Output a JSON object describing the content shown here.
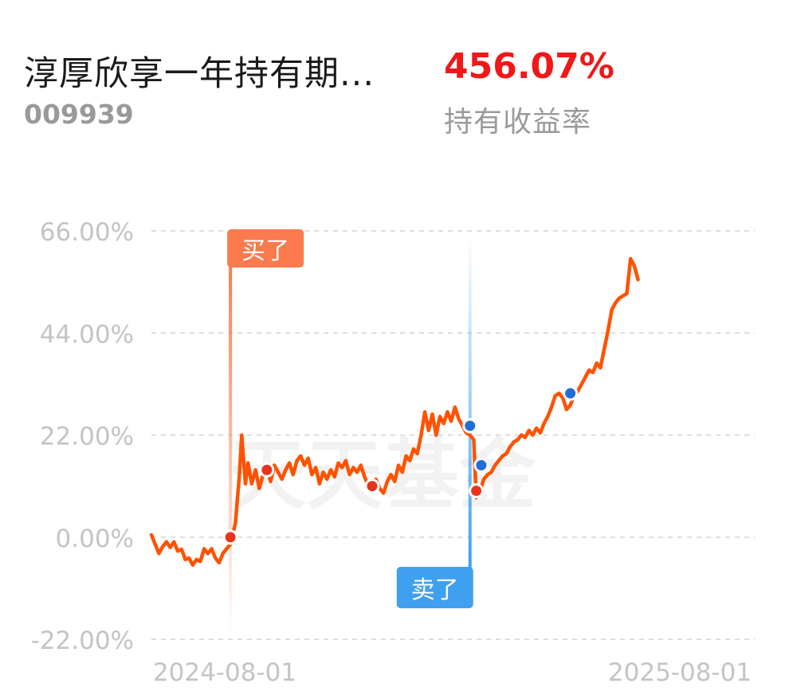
{
  "header": {
    "fund_name": "淳厚欣享一年持有期...",
    "fund_code": "009939",
    "return_value": "456.07%",
    "return_label": "持有收益率"
  },
  "watermark": "天天基金",
  "colors": {
    "line": "#ff5200",
    "buy": "#fb7a4e",
    "sell": "#3fa0ef",
    "grid": "#dddddd",
    "tick": "#c4c4c4",
    "return_value": "#f01818",
    "buy_dot": "#e8341c",
    "sell_dot": "#1f6fd6"
  },
  "chart_data": {
    "type": "line",
    "x_ticks": [
      "2024-08-01",
      "2025-08-01"
    ],
    "y_ticks": [
      "66.00%",
      "44.00%",
      "22.00%",
      "0.00%",
      "-22.00%"
    ],
    "ylim": [
      -22,
      66
    ],
    "grid": true,
    "x_domain": [
      "2024-06-01",
      "2025-09-25"
    ],
    "series": [
      {
        "values": [
          [
            "2024-06-01",
            0.5
          ],
          [
            "2024-06-04",
            -1.5
          ],
          [
            "2024-06-07",
            -3.5
          ],
          [
            "2024-06-10",
            -2.0
          ],
          [
            "2024-06-13",
            -1.0
          ],
          [
            "2024-06-16",
            -2.2
          ],
          [
            "2024-06-19",
            -1.0
          ],
          [
            "2024-06-22",
            -3.0
          ],
          [
            "2024-06-25",
            -2.6
          ],
          [
            "2024-06-28",
            -4.8
          ],
          [
            "2024-07-01",
            -4.5
          ],
          [
            "2024-07-04",
            -6.0
          ],
          [
            "2024-07-07",
            -4.8
          ],
          [
            "2024-07-10",
            -5.2
          ],
          [
            "2024-07-13",
            -2.5
          ],
          [
            "2024-07-16",
            -3.5
          ],
          [
            "2024-07-19",
            -2.5
          ],
          [
            "2024-07-22",
            -4.5
          ],
          [
            "2024-07-25",
            -5.5
          ],
          [
            "2024-07-28",
            -3.5
          ],
          [
            "2024-07-31",
            -2.5
          ],
          [
            "2024-08-03",
            -1.5
          ],
          [
            "2024-08-07",
            3.0
          ],
          [
            "2024-08-10",
            13.0
          ],
          [
            "2024-08-12",
            22.0
          ],
          [
            "2024-08-15",
            11.5
          ],
          [
            "2024-08-17",
            16.0
          ],
          [
            "2024-08-20",
            11.5
          ],
          [
            "2024-08-23",
            14.5
          ],
          [
            "2024-08-26",
            10.5
          ],
          [
            "2024-08-29",
            13.5
          ],
          [
            "2024-09-01",
            15.0
          ],
          [
            "2024-09-04",
            12.0
          ],
          [
            "2024-09-07",
            15.5
          ],
          [
            "2024-09-10",
            14.0
          ],
          [
            "2024-09-13",
            12.5
          ],
          [
            "2024-09-16",
            14.5
          ],
          [
            "2024-09-19",
            16.0
          ],
          [
            "2024-09-22",
            13.5
          ],
          [
            "2024-09-25",
            16.5
          ],
          [
            "2024-09-28",
            17.5
          ],
          [
            "2024-10-01",
            15.5
          ],
          [
            "2024-10-04",
            17.0
          ],
          [
            "2024-10-07",
            13.5
          ],
          [
            "2024-10-10",
            15.0
          ],
          [
            "2024-10-13",
            11.5
          ],
          [
            "2024-10-16",
            14.0
          ],
          [
            "2024-10-19",
            12.5
          ],
          [
            "2024-10-22",
            14.5
          ],
          [
            "2024-10-25",
            13.0
          ],
          [
            "2024-10-28",
            16.0
          ],
          [
            "2024-10-31",
            15.0
          ],
          [
            "2024-11-03",
            16.5
          ],
          [
            "2024-11-06",
            13.5
          ],
          [
            "2024-11-09",
            15.0
          ],
          [
            "2024-11-12",
            14.0
          ],
          [
            "2024-11-15",
            15.5
          ],
          [
            "2024-11-18",
            13.0
          ],
          [
            "2024-11-21",
            11.0
          ],
          [
            "2024-11-24",
            10.0
          ],
          [
            "2024-11-27",
            12.5
          ],
          [
            "2024-11-30",
            10.5
          ],
          [
            "2024-12-03",
            9.5
          ],
          [
            "2024-12-06",
            12.0
          ],
          [
            "2024-12-09",
            13.5
          ],
          [
            "2024-12-12",
            12.0
          ],
          [
            "2024-12-15",
            15.5
          ],
          [
            "2024-12-18",
            14.0
          ],
          [
            "2024-12-21",
            17.5
          ],
          [
            "2024-12-24",
            16.5
          ],
          [
            "2024-12-27",
            19.0
          ],
          [
            "2024-12-30",
            18.0
          ],
          [
            "2025-01-02",
            22.0
          ],
          [
            "2025-01-05",
            27.0
          ],
          [
            "2025-01-08",
            23.0
          ],
          [
            "2025-01-11",
            26.5
          ],
          [
            "2025-01-14",
            22.0
          ],
          [
            "2025-01-17",
            26.0
          ],
          [
            "2025-01-20",
            24.5
          ],
          [
            "2025-01-23",
            27.0
          ],
          [
            "2025-01-26",
            25.0
          ],
          [
            "2025-01-29",
            28.0
          ],
          [
            "2025-02-01",
            25.5
          ],
          [
            "2025-02-04",
            24.0
          ],
          [
            "2025-02-07",
            22.5
          ],
          [
            "2025-02-10",
            22.0
          ],
          [
            "2025-02-13",
            21.0
          ],
          [
            "2025-02-15",
            8.5
          ],
          [
            "2025-02-18",
            10.0
          ],
          [
            "2025-02-21",
            12.5
          ],
          [
            "2025-02-24",
            13.5
          ],
          [
            "2025-02-27",
            14.0
          ],
          [
            "2025-03-02",
            15.5
          ],
          [
            "2025-03-05",
            16.5
          ],
          [
            "2025-03-08",
            17.5
          ],
          [
            "2025-03-11",
            18.0
          ],
          [
            "2025-03-14",
            19.5
          ],
          [
            "2025-03-17",
            20.5
          ],
          [
            "2025-03-20",
            21.0
          ],
          [
            "2025-03-23",
            22.0
          ],
          [
            "2025-03-26",
            21.5
          ],
          [
            "2025-03-29",
            23.0
          ],
          [
            "2025-04-01",
            22.0
          ],
          [
            "2025-04-04",
            23.5
          ],
          [
            "2025-04-07",
            22.5
          ],
          [
            "2025-04-10",
            24.5
          ],
          [
            "2025-04-13",
            26.0
          ],
          [
            "2025-04-16",
            28.0
          ],
          [
            "2025-04-19",
            30.5
          ],
          [
            "2025-04-22",
            31.0
          ],
          [
            "2025-04-25",
            30.0
          ],
          [
            "2025-04-28",
            27.5
          ],
          [
            "2025-05-01",
            28.5
          ],
          [
            "2025-05-04",
            30.5
          ],
          [
            "2025-05-07",
            31.5
          ],
          [
            "2025-05-10",
            33.0
          ],
          [
            "2025-05-13",
            34.5
          ],
          [
            "2025-05-16",
            36.0
          ],
          [
            "2025-05-19",
            35.5
          ],
          [
            "2025-05-22",
            37.5
          ],
          [
            "2025-05-25",
            36.5
          ],
          [
            "2025-05-28",
            40.5
          ],
          [
            "2025-05-31",
            44.5
          ],
          [
            "2025-06-03",
            49.0
          ],
          [
            "2025-06-06",
            50.5
          ],
          [
            "2025-06-09",
            51.5
          ],
          [
            "2025-06-12",
            52.0
          ],
          [
            "2025-06-15",
            52.5
          ],
          [
            "2025-06-18",
            60.0
          ],
          [
            "2025-06-21",
            58.5
          ],
          [
            "2025-06-24",
            55.5
          ]
        ]
      }
    ],
    "markers": [
      {
        "date": "2024-08-03",
        "value": 0.0,
        "type": "buy"
      },
      {
        "date": "2024-09-01",
        "value": 14.5,
        "type": "buy"
      },
      {
        "date": "2024-11-24",
        "value": 11.0,
        "type": "buy"
      },
      {
        "date": "2025-02-15",
        "value": 10.0,
        "type": "buy"
      },
      {
        "date": "2025-02-10",
        "value": 24.0,
        "type": "sell"
      },
      {
        "date": "2025-02-19",
        "value": 15.5,
        "type": "sell"
      },
      {
        "date": "2025-05-01",
        "value": 31.0,
        "type": "sell"
      }
    ],
    "callouts": [
      {
        "type": "buy",
        "label": "买了",
        "date": "2024-08-03"
      },
      {
        "type": "sell",
        "label": "卖了",
        "date": "2025-02-10"
      }
    ]
  }
}
